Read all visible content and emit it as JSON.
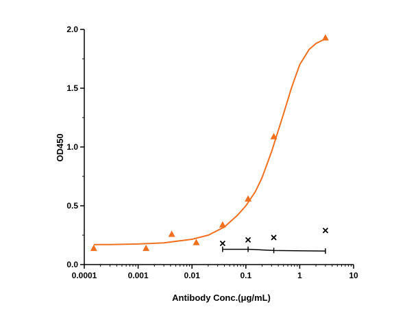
{
  "chart_data": {
    "type": "scatter",
    "xlabel": "Antibody Conc.(μg/mL)",
    "ylabel": "OD450",
    "x_scale": "log",
    "xlim": [
      0.0001,
      10
    ],
    "ylim": [
      0,
      2.0
    ],
    "x_ticks": [
      "0.0001",
      "0.001",
      "0.01",
      "0.1",
      "1",
      "10"
    ],
    "y_ticks": [
      "0.0",
      "0.5",
      "1.0",
      "1.5",
      "2.0"
    ],
    "grid": false,
    "series": [
      {
        "marker": "triangle",
        "color": "#F07020",
        "x": [
          0.00015,
          0.0014,
          0.0042,
          0.012,
          0.037,
          0.11,
          0.33,
          3.0
        ],
        "y": [
          0.14,
          0.14,
          0.26,
          0.19,
          0.34,
          0.56,
          1.09,
          1.93
        ],
        "fit": "4PL sigmoid",
        "fit_curve": {
          "x": [
            0.00015,
            0.0003,
            0.001,
            0.003,
            0.01,
            0.02,
            0.04,
            0.07,
            0.1,
            0.15,
            0.2,
            0.3,
            0.5,
            0.7,
            1.0,
            1.5,
            2.0,
            3.0
          ],
          "y": [
            0.17,
            0.17,
            0.175,
            0.185,
            0.215,
            0.25,
            0.32,
            0.42,
            0.5,
            0.62,
            0.74,
            0.96,
            1.28,
            1.5,
            1.7,
            1.83,
            1.88,
            1.92
          ]
        }
      },
      {
        "marker": "x",
        "color": "#000000",
        "x": [
          0.037,
          0.11,
          0.33,
          3.0
        ],
        "y": [
          0.18,
          0.21,
          0.23,
          0.29
        ]
      },
      {
        "marker": "vertical-tick",
        "color": "#000000",
        "x": [
          0.037,
          0.11,
          0.33,
          3.0
        ],
        "y": [
          0.13,
          0.13,
          0.12,
          0.115
        ],
        "line": true
      }
    ]
  }
}
